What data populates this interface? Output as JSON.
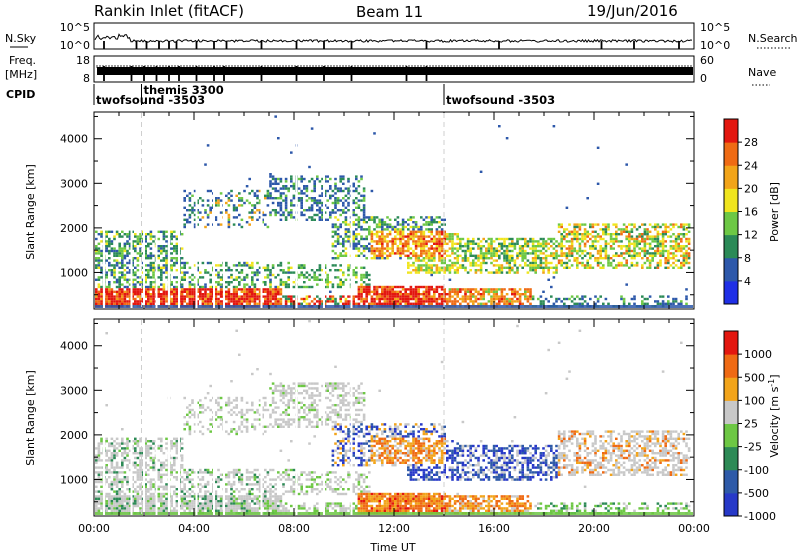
{
  "header": {
    "site": "Rankin Inlet (fitACF)",
    "beam": "Beam 11",
    "date": "19/Jun/2016"
  },
  "status_panels": {
    "nsky_label": "N.Sky",
    "nsky_ticks": [
      "10^5",
      "10^0"
    ],
    "nsearch_label": "N.Search",
    "nsearch_ticks": [
      "10^5",
      "10^0"
    ],
    "freq_label_1": "Freq.",
    "freq_label_2": "[MHz]",
    "freq_ticks": [
      "18",
      "8"
    ],
    "nave_label": "Nave",
    "nave_ticks": [
      "60",
      "0"
    ],
    "cpid_label": "CPID",
    "cpid_segments": [
      {
        "name": "twofsound -3503",
        "start_hour": 0
      },
      {
        "name": "themis 3300",
        "start_hour": 1.9
      },
      {
        "name": "twofsound -3503",
        "start_hour": 14.0
      }
    ]
  },
  "chart_data": [
    {
      "type": "heatmap",
      "title": "",
      "parameter": "Power",
      "xlabel": "",
      "ylabel": "Slant Range [km]",
      "xlim": [
        "00:00",
        "00:00"
      ],
      "ylim": [
        180,
        4600
      ],
      "xticks": [
        "00:00",
        "04:00",
        "08:00",
        "12:00",
        "16:00",
        "20:00",
        "00:00"
      ],
      "yticks": [
        1000,
        2000,
        3000,
        4000
      ],
      "colorbar": {
        "label": "Power [dB]",
        "ticks": [
          4,
          8,
          12,
          16,
          20,
          24,
          28
        ],
        "colors": [
          "#1f2fe6",
          "#2d58aa",
          "#2b8a57",
          "#6dc845",
          "#f0e51e",
          "#f2a419",
          "#ef6b14",
          "#e3170f"
        ]
      }
    },
    {
      "type": "heatmap",
      "title": "",
      "parameter": "Velocity",
      "xlabel": "Time UT",
      "ylabel": "Slant Range [km]",
      "xlim": [
        "00:00",
        "00:00"
      ],
      "ylim": [
        180,
        4600
      ],
      "xticks": [
        "00:00",
        "04:00",
        "08:00",
        "12:00",
        "16:00",
        "20:00",
        "00:00"
      ],
      "yticks": [
        1000,
        2000,
        3000,
        4000
      ],
      "colorbar": {
        "label": "Velocity [m s^-1]",
        "ticks": [
          "1000",
          "500",
          "100",
          "25",
          "-25",
          "-100",
          "-500",
          "-1000"
        ],
        "colors": [
          "#2739c8",
          "#2e5aa8",
          "#2d8a56",
          "#6dc744",
          "#c8c8c8",
          "#f2a41a",
          "#ef6a14",
          "#e3170f"
        ]
      }
    }
  ]
}
